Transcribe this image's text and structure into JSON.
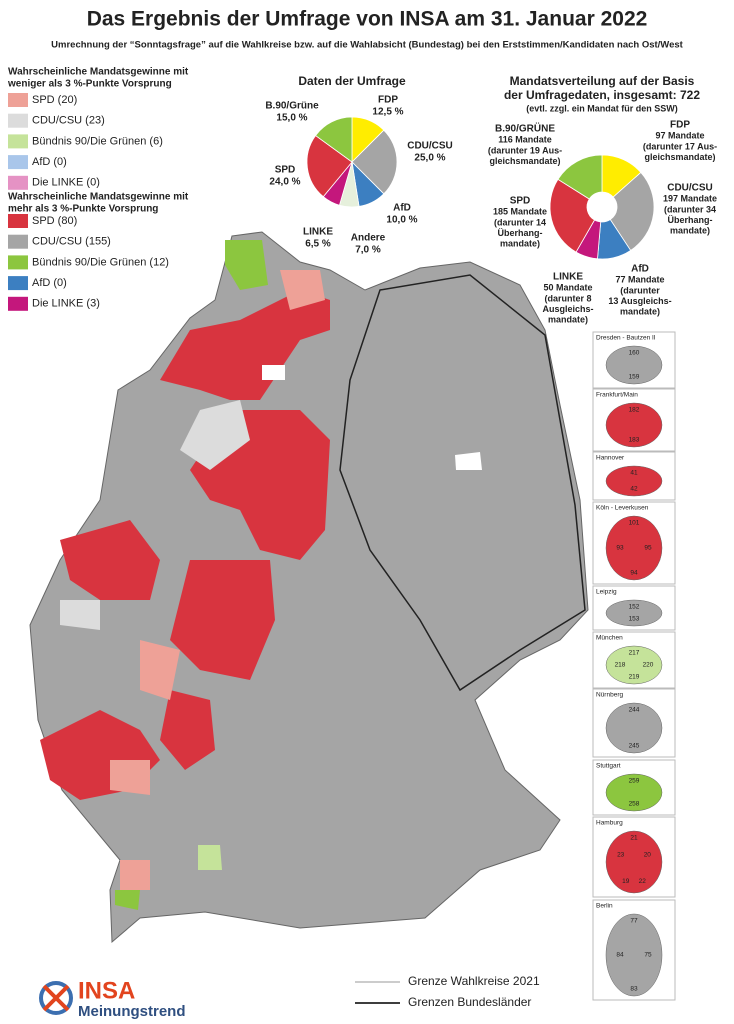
{
  "header": {
    "title": "Das Ergebnis der Umfrage von INSA am 31. Januar 2022",
    "subtitle": "Umrechnung der “Sonntagsfrage” auf die Wahlkreise bzw. auf die Wahlabsicht (Bundestag) bei den Erststimmen/Kandidaten nach Ost/West"
  },
  "legend": [
    {
      "title": [
        "Wahrscheinliche Mandatsgewinne mit",
        "weniger als 3 %-Punkte Vorsprung"
      ],
      "items": [
        {
          "label": "SPD (20)",
          "color": "#eea197"
        },
        {
          "label": "CDU/CSU (23)",
          "color": "#dcdcdc"
        },
        {
          "label": "Bündnis 90/Die Grünen (6)",
          "color": "#c5e39a"
        },
        {
          "label": "AfD (0)",
          "color": "#a9c6ea"
        },
        {
          "label": "Die LINKE (0)",
          "color": "#e592c4"
        }
      ]
    },
    {
      "title": [
        "Wahrscheinliche Mandatsgewinne mit",
        "mehr als 3 %-Punkte Vorsprung"
      ],
      "items": [
        {
          "label": "SPD (80)",
          "color": "#d8343f"
        },
        {
          "label": "CDU/CSU (155)",
          "color": "#a5a5a5"
        },
        {
          "label": "Bündnis 90/Die Grünen (12)",
          "color": "#8cc63f"
        },
        {
          "label": "AfD (0)",
          "color": "#3c7fc1"
        },
        {
          "label": "Die LINKE (3)",
          "color": "#c4177c"
        }
      ]
    }
  ],
  "chart_data": [
    {
      "type": "pie",
      "title": "Daten der Umfrage",
      "categories": [
        "FDP",
        "CDU/CSU",
        "AfD",
        "Andere",
        "LINKE",
        "SPD",
        "B.90/Grüne"
      ],
      "values": [
        12.5,
        25.0,
        10.0,
        7.0,
        6.5,
        24.0,
        15.0
      ],
      "value_labels": [
        "12,5 %",
        "25,0 %",
        "10,0 %",
        "7,0 %",
        "6,5 %",
        "24,0 %",
        "15,0 %"
      ],
      "colors": [
        "#ffed00",
        "#a5a5a5",
        "#3c7fc1",
        "#e6f0dc",
        "#c4177c",
        "#d8343f",
        "#8cc63f"
      ]
    },
    {
      "type": "donut",
      "title": [
        "Mandatsverteilung auf der Basis",
        "der Umfragedaten, insgesamt: 722"
      ],
      "subtitle": "(evtl. zzgl. ein Mandat für den SSW)",
      "categories": [
        "FDP",
        "CDU/CSU",
        "AfD",
        "LINKE",
        "SPD",
        "B.90/GRÜNE"
      ],
      "values": [
        97,
        197,
        77,
        50,
        185,
        116
      ],
      "value_labels": [
        "97 Mandate",
        "197 Mandate",
        "77 Mandate",
        "50 Mandate",
        "185 Mandate",
        "116 Mandate"
      ],
      "notes": [
        [
          "(darunter 17 Aus-",
          "gleichsmandate)"
        ],
        [
          "(darunter 34",
          "Überhang-",
          "mandate)"
        ],
        [
          "(darunter",
          "13 Ausgleichs-",
          "mandate)"
        ],
        [
          "(darunter 8",
          "Ausgleichs-",
          "mandate)"
        ],
        [
          "(darunter 14",
          "Überhang-",
          "mandate)"
        ],
        [
          "(darunter 19 Aus-",
          "gleichsmandate)"
        ]
      ],
      "colors": [
        "#ffed00",
        "#a5a5a5",
        "#3c7fc1",
        "#c4177c",
        "#d8343f",
        "#8cc63f"
      ]
    }
  ],
  "insets": [
    {
      "title": "Dresden - Bautzen II",
      "numbers": [
        "160",
        "159"
      ]
    },
    {
      "title": "Frankfurt/Main",
      "numbers": [
        "182",
        "183"
      ]
    },
    {
      "title": "Hannover",
      "numbers": [
        "41",
        "42"
      ]
    },
    {
      "title": "Köln - Leverkusen",
      "numbers": [
        "101",
        "95",
        "94",
        "93"
      ]
    },
    {
      "title": "Leipzig",
      "numbers": [
        "152",
        "153"
      ]
    },
    {
      "title": "München",
      "numbers": [
        "217",
        "220",
        "219",
        "218"
      ]
    },
    {
      "title": "Nürnberg",
      "numbers": [
        "244",
        "245"
      ]
    },
    {
      "title": "Stuttgart",
      "numbers": [
        "259",
        "258"
      ]
    },
    {
      "title": "Hamburg",
      "numbers": [
        "21",
        "20",
        "22",
        "19",
        "23"
      ]
    },
    {
      "title": "Berlin",
      "numbers": [
        "77",
        "75",
        "83",
        "84"
      ]
    }
  ],
  "map_legend": [
    "Grenze Wahlkreise 2021",
    "Grenzen Bundesländer"
  ],
  "logo": {
    "brand": "INSA",
    "tagline": "Meinungstrend"
  }
}
